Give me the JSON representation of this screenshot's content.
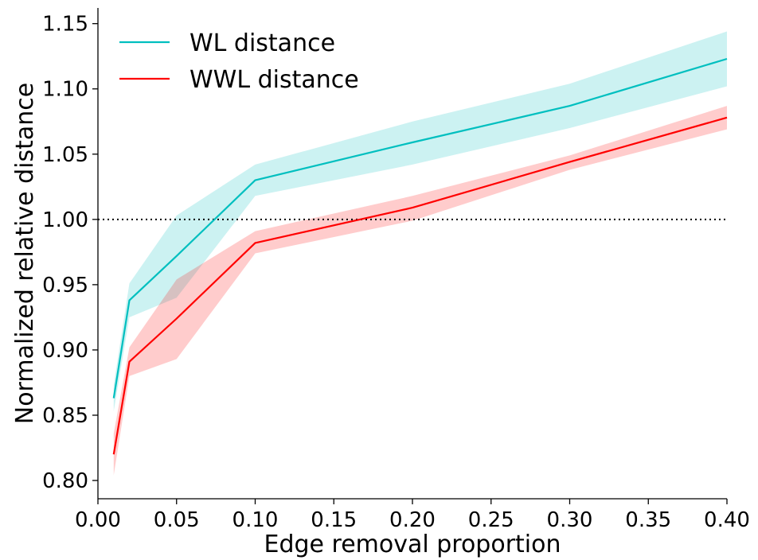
{
  "chart_data": {
    "type": "line",
    "title": "",
    "xlabel": "Edge removal proportion",
    "ylabel": "Normalized relative distance",
    "xlim": [
      0.0,
      0.4
    ],
    "ylim": [
      0.786,
      1.162
    ],
    "x_ticks": [
      "0.00",
      "0.05",
      "0.10",
      "0.15",
      "0.20",
      "0.25",
      "0.30",
      "0.35",
      "0.40"
    ],
    "y_ticks": [
      "0.80",
      "0.85",
      "0.90",
      "0.95",
      "1.00",
      "1.05",
      "1.10",
      "1.15"
    ],
    "x_tick_values": [
      0.0,
      0.05,
      0.1,
      0.15,
      0.2,
      0.25,
      0.3,
      0.35,
      0.4
    ],
    "y_tick_values": [
      0.8,
      0.85,
      0.9,
      0.95,
      1.0,
      1.05,
      1.1,
      1.15
    ],
    "grid": false,
    "legend_position": "top-left",
    "reference_line": {
      "y": 1.0,
      "style": "dotted",
      "color": "#000000"
    },
    "x": [
      0.01,
      0.02,
      0.05,
      0.1,
      0.2,
      0.3,
      0.4
    ],
    "series": [
      {
        "name": "WL distance",
        "color": "#00bfbf",
        "values": [
          0.863,
          0.938,
          0.972,
          1.03,
          1.059,
          1.087,
          1.123
        ],
        "lower": [
          0.853,
          0.925,
          0.94,
          1.018,
          1.042,
          1.07,
          1.102
        ],
        "upper": [
          0.873,
          0.951,
          1.003,
          1.042,
          1.075,
          1.104,
          1.144
        ]
      },
      {
        "name": "WWL distance",
        "color": "#ff0000",
        "values": [
          0.82,
          0.891,
          0.924,
          0.982,
          1.009,
          1.044,
          1.078
        ],
        "lower": [
          0.804,
          0.88,
          0.893,
          0.974,
          0.999,
          1.038,
          1.069
        ],
        "upper": [
          0.836,
          0.902,
          0.954,
          0.991,
          1.018,
          1.049,
          1.087
        ]
      }
    ]
  }
}
